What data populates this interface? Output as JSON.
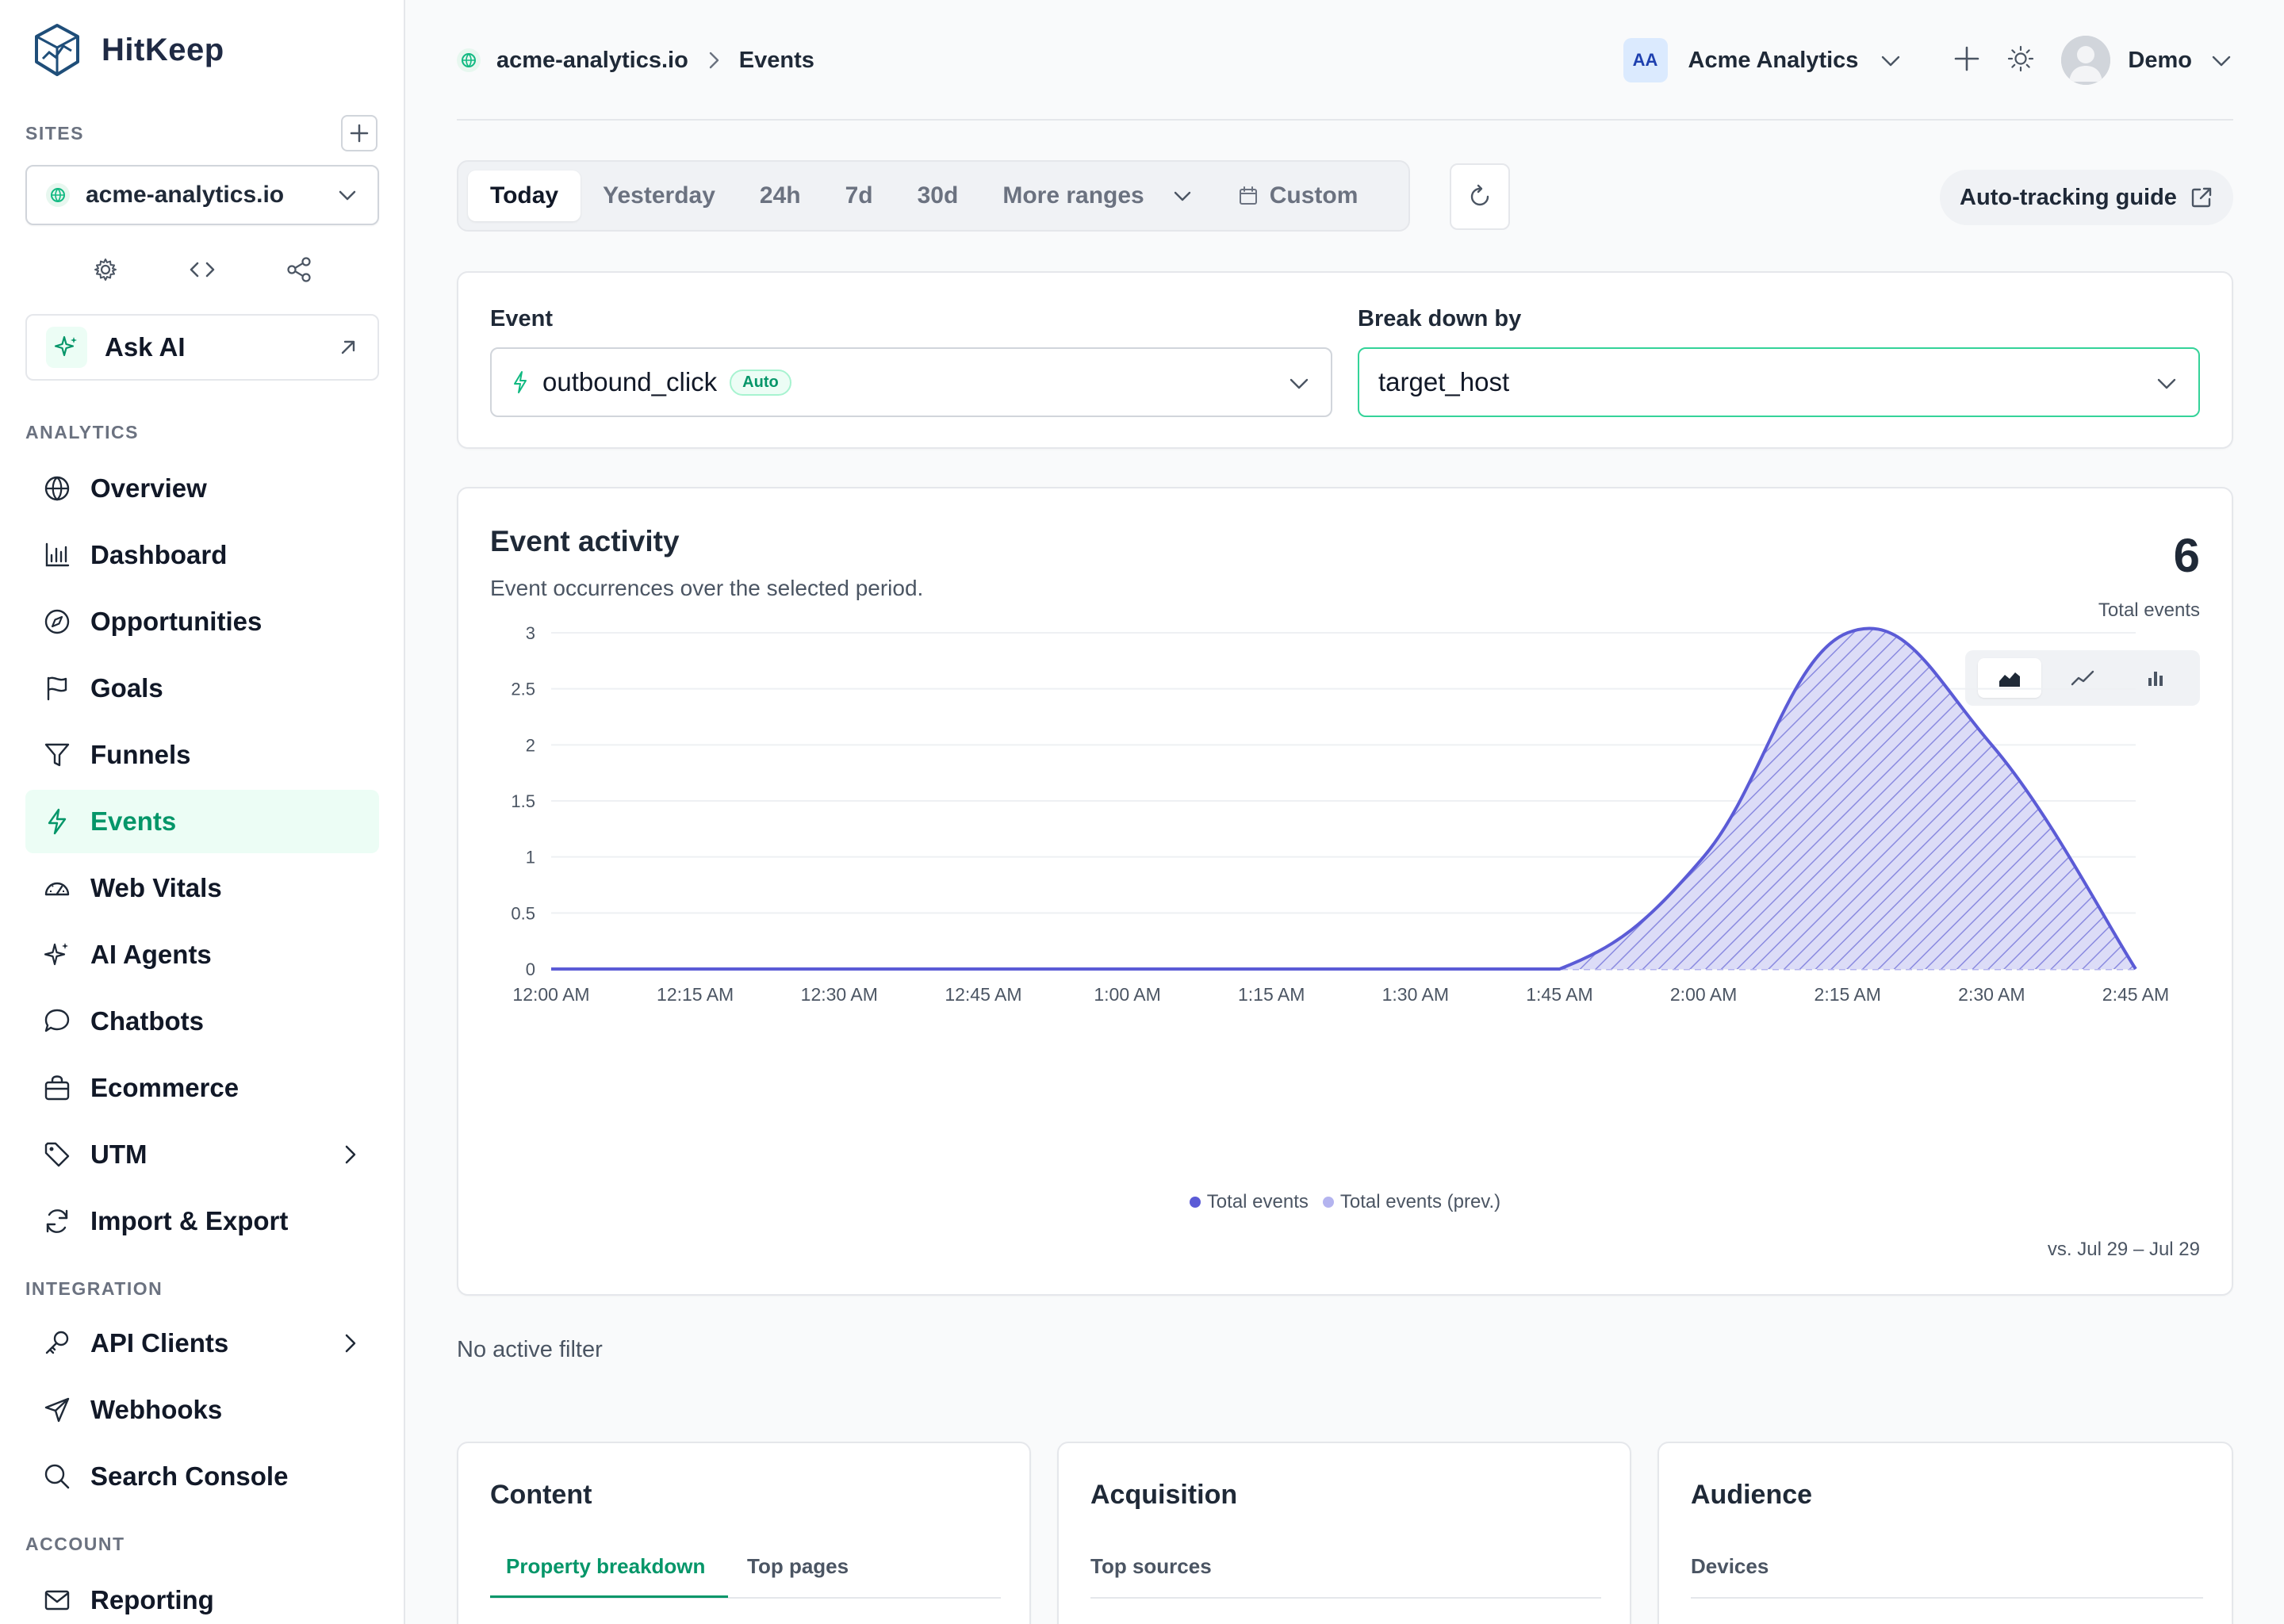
{
  "brand": {
    "name": "HitKeep"
  },
  "sidebar": {
    "sites_label": "SITES",
    "site_selected": "acme-analytics.io",
    "ask_ai_label": "Ask AI",
    "analytics_label": "ANALYTICS",
    "analytics_items": [
      {
        "label": "Overview",
        "icon": "globe-icon"
      },
      {
        "label": "Dashboard",
        "icon": "bar-chart-icon"
      },
      {
        "label": "Opportunities",
        "icon": "compass-icon"
      },
      {
        "label": "Goals",
        "icon": "flag-icon"
      },
      {
        "label": "Funnels",
        "icon": "funnel-icon"
      },
      {
        "label": "Events",
        "icon": "bolt-icon",
        "active": true
      },
      {
        "label": "Web Vitals",
        "icon": "gauge-icon"
      },
      {
        "label": "AI Agents",
        "icon": "sparkles-icon"
      },
      {
        "label": "Chatbots",
        "icon": "chat-icon"
      },
      {
        "label": "Ecommerce",
        "icon": "shopping-bag-icon"
      },
      {
        "label": "UTM",
        "icon": "tag-icon",
        "has_submenu": true
      },
      {
        "label": "Import & Export",
        "icon": "sync-icon"
      }
    ],
    "integration_label": "INTEGRATION",
    "integration_items": [
      {
        "label": "API Clients",
        "icon": "key-icon",
        "has_submenu": true
      },
      {
        "label": "Webhooks",
        "icon": "send-icon"
      },
      {
        "label": "Search Console",
        "icon": "search-icon"
      }
    ],
    "account_label": "ACCOUNT",
    "account_items": [
      {
        "label": "Reporting",
        "icon": "mail-icon"
      }
    ]
  },
  "header": {
    "breadcrumb_site": "acme-analytics.io",
    "breadcrumb_page": "Events",
    "org_initials": "AA",
    "org_name": "Acme Analytics",
    "user_name": "Demo"
  },
  "ranges": {
    "options": [
      "Today",
      "Yesterday",
      "24h",
      "7d",
      "30d"
    ],
    "active": "Today",
    "more_label": "More ranges",
    "custom_label": "Custom"
  },
  "guide": {
    "label": "Auto-tracking guide"
  },
  "filters": {
    "event_label": "Event",
    "event_value": "outbound_click",
    "event_badge": "Auto",
    "breakdown_label": "Break down by",
    "breakdown_value": "target_host"
  },
  "activity": {
    "title": "Event activity",
    "subtitle": "Event occurrences over the selected period.",
    "total": "6",
    "total_label": "Total events",
    "compare_label": "vs. Jul 29 – Jul 29"
  },
  "chart_data": {
    "type": "area",
    "title": "",
    "xlabel": "",
    "ylabel": "",
    "ylim": [
      0,
      3
    ],
    "yticks": [
      "0",
      "0.5",
      "1",
      "1.5",
      "2",
      "2.5",
      "3"
    ],
    "x": [
      "12:00 AM",
      "12:15 AM",
      "12:30 AM",
      "12:45 AM",
      "1:00 AM",
      "1:15 AM",
      "1:30 AM",
      "1:45 AM",
      "2:00 AM",
      "2:15 AM",
      "2:30 AM",
      "2:45 AM"
    ],
    "series": [
      {
        "name": "Total events",
        "values": [
          0,
          0,
          0,
          0,
          0,
          0,
          0,
          0,
          1,
          3,
          2,
          0
        ],
        "color": "#5b5bd6"
      },
      {
        "name": "Total events (prev.)",
        "values": [
          0,
          0,
          0,
          0,
          0,
          0,
          0,
          0,
          0,
          0,
          0,
          0
        ],
        "color": "#b4b4ef"
      }
    ],
    "legend": "bottom-center",
    "grid": true
  },
  "no_filter_text": "No active filter",
  "bottom_cards": [
    {
      "title": "Content",
      "tabs": [
        "Property breakdown",
        "Top pages"
      ],
      "active_tab": "Property breakdown"
    },
    {
      "title": "Acquisition",
      "tabs": [
        "Top sources"
      ]
    },
    {
      "title": "Audience",
      "tabs": [
        "Devices"
      ]
    }
  ],
  "colors": {
    "accent": "#059669",
    "accent_bg": "#ecfdf5",
    "series": "#5b5bd6",
    "series_prev": "#b4b4ef"
  }
}
